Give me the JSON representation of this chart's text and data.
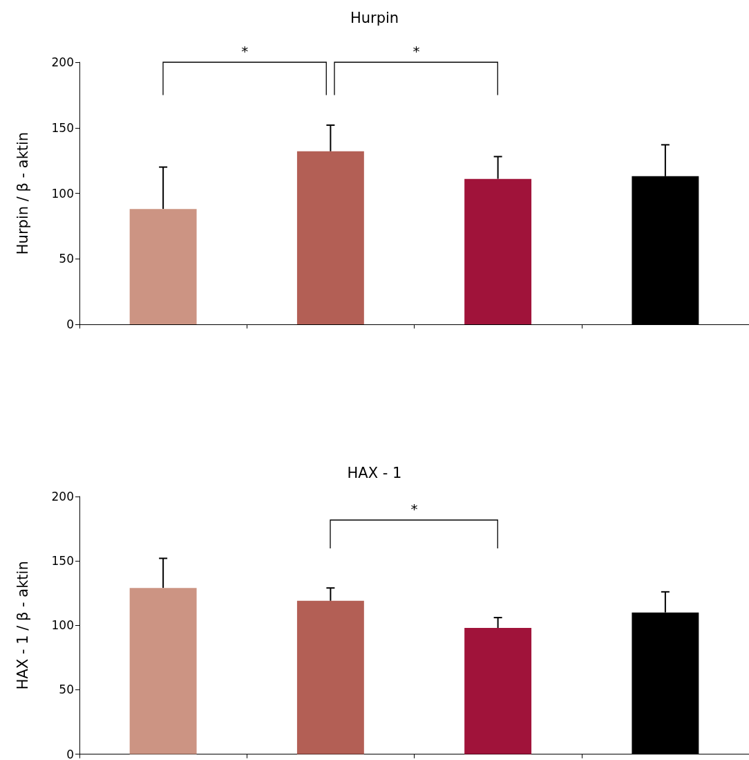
{
  "chart_data": [
    {
      "type": "bar",
      "title": "Hurpin",
      "ylabel": "Hurpin / β - aktin",
      "categories": [
        null,
        null,
        null,
        null
      ],
      "values": [
        88,
        132,
        111,
        113
      ],
      "colors": [
        "#cc9483",
        "#b35f55",
        "#a0133a",
        "#000000"
      ],
      "errors": [
        [
          88,
          120
        ],
        [
          132,
          152
        ],
        [
          111,
          128
        ],
        [
          113,
          137
        ]
      ],
      "ylim": [
        0,
        200
      ],
      "yticks": [
        0,
        50,
        100,
        150,
        200
      ],
      "grid": false,
      "tick_labels": "y",
      "annotations": [
        "*",
        "*"
      ]
    },
    {
      "type": "bar",
      "title": "HAX - 1",
      "ylabel": "HAX - 1 / β - aktin",
      "categories": [
        null,
        null,
        null,
        null
      ],
      "values": [
        129,
        119,
        98,
        110
      ],
      "colors": [
        "#cc9483",
        "#b35f55",
        "#a0133a",
        "#000000"
      ],
      "errors": [
        [
          129,
          152
        ],
        [
          119,
          129
        ],
        [
          98,
          106
        ],
        [
          110,
          126
        ]
      ],
      "ylim": [
        0,
        200
      ],
      "yticks": [
        0,
        50,
        100,
        150,
        200
      ],
      "grid": false,
      "tick_labels": "y",
      "annotations": [
        "*"
      ]
    }
  ]
}
